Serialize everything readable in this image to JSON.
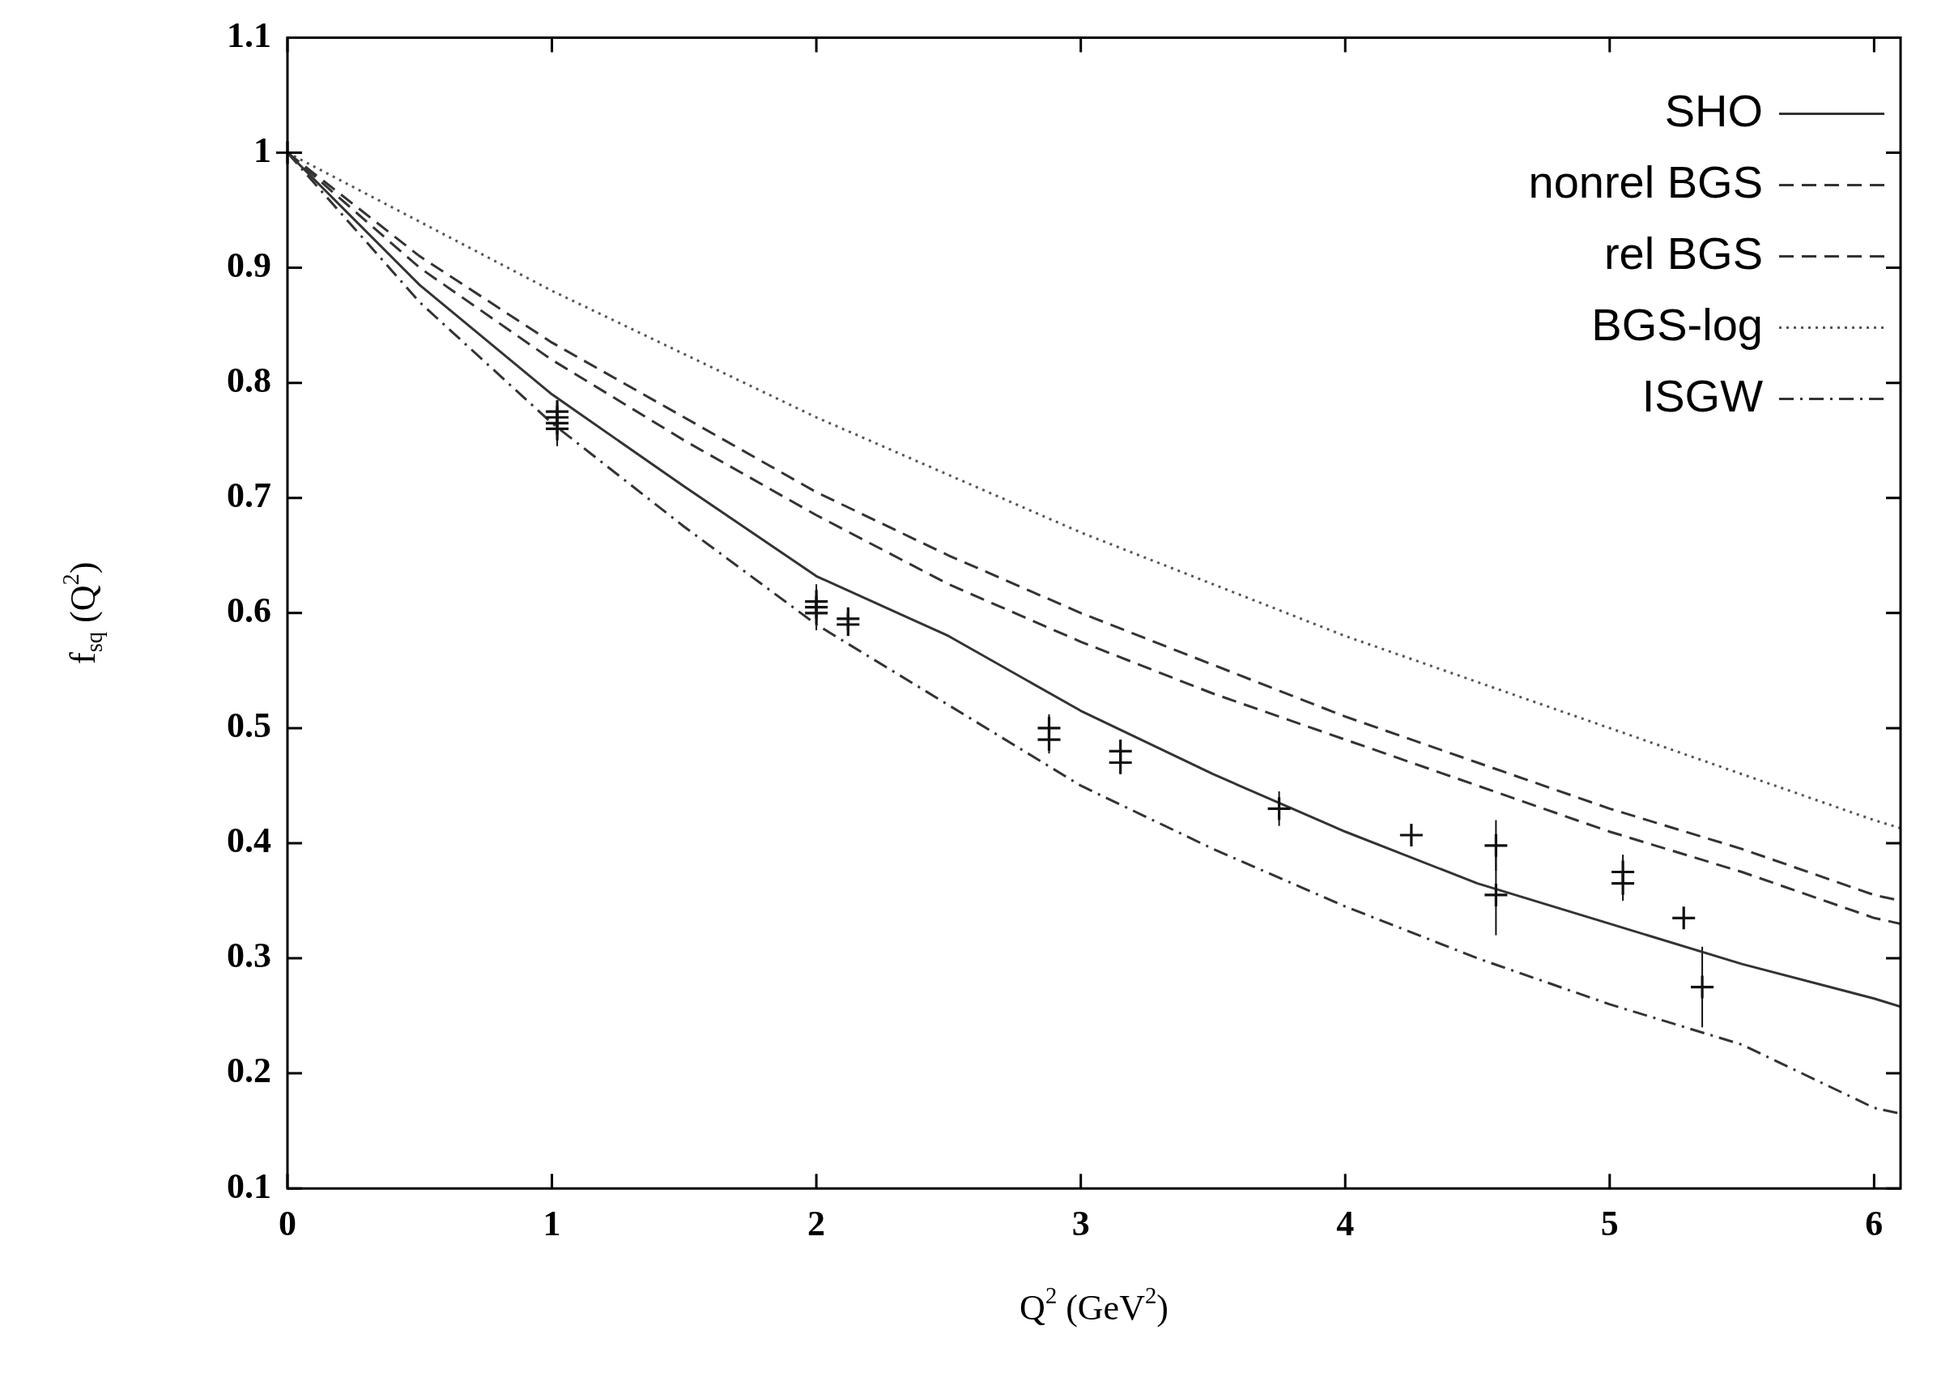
{
  "chart_data": {
    "type": "line",
    "xlabel": "Q$^{2}$ (GeV$^{2}$)",
    "ylabel": "f$_{sq}$ (Q$^{2}$)",
    "xlim": [
      0,
      6.1
    ],
    "xticks": [
      0,
      1,
      2,
      3,
      4,
      5,
      6
    ],
    "ylim": [
      0.1,
      1.1
    ],
    "yticks": [
      0.1,
      0.2,
      0.3,
      0.4,
      0.5,
      0.6,
      0.7,
      0.8,
      0.9,
      1,
      1.1
    ],
    "grid": false,
    "legend": "top right",
    "series": [
      {
        "name": "SHO",
        "type": "line",
        "line_style": "solid",
        "marker": "none",
        "color": "#333333",
        "x": [
          0,
          0.5,
          1,
          1.5,
          2,
          2.5,
          3,
          3.5,
          4,
          4.5,
          5,
          5.5,
          6,
          6.1
        ],
        "values": [
          1,
          0.885,
          0.79,
          0.71,
          0.632,
          0.58,
          0.515,
          0.46,
          0.41,
          0.365,
          0.33,
          0.295,
          0.265,
          0.258
        ]
      },
      {
        "name": "nonrel BGS",
        "type": "line",
        "line_style": "dashed",
        "marker": "none",
        "color": "#333333",
        "x": [
          0,
          0.5,
          1,
          1.5,
          2,
          2.5,
          3,
          3.5,
          4,
          4.5,
          5,
          5.5,
          6,
          6.1
        ],
        "values": [
          1,
          0.91,
          0.835,
          0.77,
          0.705,
          0.65,
          0.6,
          0.555,
          0.51,
          0.47,
          0.43,
          0.395,
          0.355,
          0.35
        ]
      },
      {
        "name": "rel BGS",
        "type": "line",
        "line_style": "dashed",
        "marker": "none",
        "color": "#333333",
        "x": [
          0,
          0.5,
          1,
          1.5,
          2,
          2.5,
          3,
          3.5,
          4,
          4.5,
          5,
          5.5,
          6,
          6.1
        ],
        "values": [
          1,
          0.9,
          0.82,
          0.75,
          0.685,
          0.625,
          0.575,
          0.53,
          0.49,
          0.45,
          0.41,
          0.375,
          0.335,
          0.33
        ]
      },
      {
        "name": "BGS-log",
        "type": "line",
        "line_style": "dotted",
        "marker": "none",
        "color": "#555555",
        "x": [
          0,
          0.5,
          1,
          1.5,
          2,
          2.5,
          3,
          3.5,
          4,
          4.5,
          5,
          5.5,
          6,
          6.1
        ],
        "values": [
          1,
          0.94,
          0.88,
          0.825,
          0.77,
          0.72,
          0.67,
          0.625,
          0.58,
          0.54,
          0.5,
          0.46,
          0.42,
          0.413
        ]
      },
      {
        "name": "ISGW",
        "type": "line",
        "line_style": "dashdot",
        "marker": "none",
        "color": "#333333",
        "x": [
          0,
          0.5,
          1,
          1.5,
          2,
          2.5,
          3,
          3.5,
          4,
          4.5,
          5,
          5.5,
          6,
          6.1
        ],
        "values": [
          1,
          0.87,
          0.765,
          0.675,
          0.59,
          0.52,
          0.45,
          0.395,
          0.345,
          0.3,
          0.26,
          0.225,
          0.17,
          0.165
        ]
      },
      {
        "type": "scatter",
        "marker": "cross",
        "color": "#111111",
        "x": [
          0,
          1.02,
          1.02,
          1.02,
          1.02,
          2,
          2,
          2,
          2.12,
          2.12,
          2.88,
          2.88,
          3.15,
          3.15,
          3.75,
          4.25,
          4.57,
          4.57,
          5.05,
          5.05,
          5.28,
          5.35
        ],
        "values": [
          1,
          0.775,
          0.77,
          0.765,
          0.76,
          0.61,
          0.605,
          0.6,
          0.595,
          0.59,
          0.5,
          0.49,
          0.48,
          0.47,
          0.43,
          0.407,
          0.398,
          0.355,
          0.375,
          0.365,
          0.335,
          0.275
        ],
        "errors": [
          0.005,
          0.01,
          0.01,
          0.015,
          0.015,
          0.015,
          0.015,
          0.015,
          0.01,
          0.01,
          0.012,
          0.012,
          0.01,
          0.01,
          0.015,
          0.005,
          0.022,
          0.035,
          0.015,
          0.015,
          0.007,
          0.035
        ]
      }
    ]
  }
}
